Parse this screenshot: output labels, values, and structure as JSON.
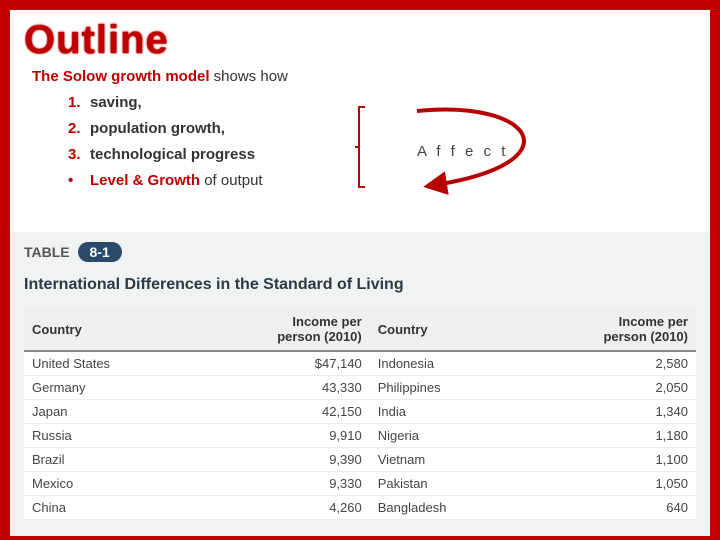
{
  "title": "Outline",
  "intro": {
    "lead": "The Solow growth model",
    "after": " shows how",
    "items": [
      "saving,",
      "population growth,",
      "technological progress"
    ],
    "bullet_bold": "Level & Growth",
    "bullet_rest": " of output"
  },
  "affect_label": "A f f e c t",
  "arrow": {
    "stroke": "#b60000",
    "width": 4
  },
  "table": {
    "tag_text": "TABLE",
    "tag_num": "8-1",
    "title": "International Differences in the Standard of Living",
    "headers": {
      "country": "Country",
      "income": "Income per\nperson (2010)"
    },
    "left": [
      {
        "country": "United States",
        "income": "$47,140"
      },
      {
        "country": "Germany",
        "income": "43,330"
      },
      {
        "country": "Japan",
        "income": "42,150"
      },
      {
        "country": "Russia",
        "income": "9,910"
      },
      {
        "country": "Brazil",
        "income": "9,390"
      },
      {
        "country": "Mexico",
        "income": "9,330"
      },
      {
        "country": "China",
        "income": "4,260"
      }
    ],
    "right": [
      {
        "country": "Indonesia",
        "income": "2,580"
      },
      {
        "country": "Philippines",
        "income": "2,050"
      },
      {
        "country": "India",
        "income": "1,340"
      },
      {
        "country": "Nigeria",
        "income": "1,180"
      },
      {
        "country": "Vietnam",
        "income": "1,100"
      },
      {
        "country": "Pakistan",
        "income": "1,050"
      },
      {
        "country": "Bangladesh",
        "income": "640"
      }
    ]
  }
}
